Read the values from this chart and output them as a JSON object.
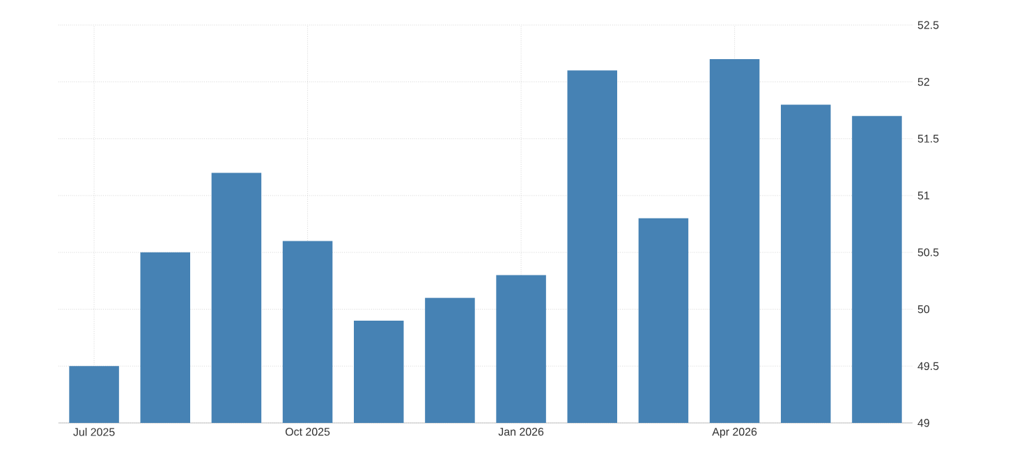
{
  "chart_data": {
    "type": "bar",
    "categories": [
      "Jul 2025",
      null,
      null,
      "Oct 2025",
      null,
      null,
      "Jan 2026",
      null,
      null,
      "Apr 2026",
      null,
      null
    ],
    "values": [
      49.5,
      50.5,
      51.2,
      50.6,
      49.9,
      50.1,
      50.3,
      52.1,
      50.8,
      52.2,
      51.8,
      51.7
    ],
    "color": "#4682b4",
    "ylim": [
      49,
      52.5
    ],
    "yticks": [
      49,
      49.5,
      50,
      50.5,
      51,
      51.5,
      52,
      52.5
    ],
    "grid": true
  }
}
